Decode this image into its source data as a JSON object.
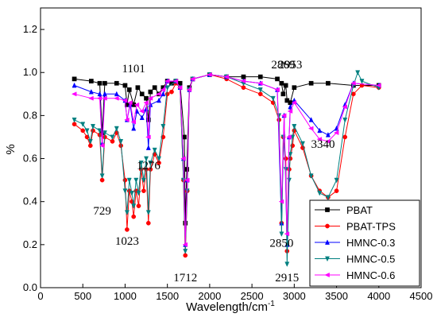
{
  "chart_data": {
    "type": "line",
    "title": "",
    "xlabel": "Wavelength/cm",
    "xlabel_superscript": "-1",
    "ylabel": "%",
    "xlim": [
      0,
      4500
    ],
    "ylim": [
      0.0,
      1.3
    ],
    "x_ticks": [
      0,
      500,
      1000,
      1500,
      2000,
      2500,
      3000,
      3500,
      4000,
      4500
    ],
    "x_tick_labels": [
      "0",
      "500",
      "1000",
      "1500",
      "2000",
      "2500",
      "3000",
      "3500",
      "4000",
      "4500"
    ],
    "y_ticks": [
      0.0,
      0.2,
      0.4,
      0.6,
      0.8,
      1.0,
      1.2
    ],
    "y_tick_labels": [
      "0.0",
      "0.2",
      "0.4",
      "0.6",
      "0.8",
      "1.0",
      "1.2"
    ],
    "grid": false,
    "legend_position": "bottom-right",
    "series": [
      {
        "name": "PBAT",
        "color": "#000000",
        "marker": "square",
        "points": [
          [
            400,
            0.97
          ],
          [
            600,
            0.96
          ],
          [
            700,
            0.95
          ],
          [
            729,
            0.72
          ],
          [
            760,
            0.95
          ],
          [
            900,
            0.95
          ],
          [
            1000,
            0.94
          ],
          [
            1023,
            0.85
          ],
          [
            1050,
            0.92
          ],
          [
            1101,
            0.85
          ],
          [
            1150,
            0.93
          ],
          [
            1200,
            0.9
          ],
          [
            1250,
            0.88
          ],
          [
            1276,
            0.78
          ],
          [
            1300,
            0.91
          ],
          [
            1350,
            0.93
          ],
          [
            1400,
            0.9
          ],
          [
            1450,
            0.93
          ],
          [
            1500,
            0.96
          ],
          [
            1550,
            0.95
          ],
          [
            1600,
            0.96
          ],
          [
            1650,
            0.95
          ],
          [
            1700,
            0.7
          ],
          [
            1712,
            0.3
          ],
          [
            1730,
            0.55
          ],
          [
            1760,
            0.93
          ],
          [
            1800,
            0.97
          ],
          [
            2000,
            0.99
          ],
          [
            2200,
            0.98
          ],
          [
            2400,
            0.98
          ],
          [
            2600,
            0.98
          ],
          [
            2800,
            0.97
          ],
          [
            2850,
            0.95
          ],
          [
            2869,
            0.9
          ],
          [
            2900,
            0.94
          ],
          [
            2915,
            0.87
          ],
          [
            2953,
            0.86
          ],
          [
            3000,
            0.93
          ],
          [
            3200,
            0.95
          ],
          [
            3400,
            0.95
          ],
          [
            3700,
            0.94
          ],
          [
            4000,
            0.94
          ]
        ]
      },
      {
        "name": "PBAT-TPS",
        "color": "#ff0000",
        "marker": "circle",
        "points": [
          [
            400,
            0.76
          ],
          [
            500,
            0.73
          ],
          [
            550,
            0.7
          ],
          [
            590,
            0.66
          ],
          [
            620,
            0.73
          ],
          [
            700,
            0.71
          ],
          [
            729,
            0.5
          ],
          [
            760,
            0.7
          ],
          [
            850,
            0.68
          ],
          [
            900,
            0.72
          ],
          [
            950,
            0.66
          ],
          [
            1000,
            0.5
          ],
          [
            1023,
            0.27
          ],
          [
            1050,
            0.45
          ],
          [
            1080,
            0.4
          ],
          [
            1101,
            0.33
          ],
          [
            1130,
            0.45
          ],
          [
            1160,
            0.38
          ],
          [
            1190,
            0.55
          ],
          [
            1220,
            0.45
          ],
          [
            1250,
            0.55
          ],
          [
            1276,
            0.3
          ],
          [
            1300,
            0.55
          ],
          [
            1350,
            0.62
          ],
          [
            1400,
            0.58
          ],
          [
            1450,
            0.7
          ],
          [
            1500,
            0.9
          ],
          [
            1550,
            0.91
          ],
          [
            1600,
            0.95
          ],
          [
            1650,
            0.93
          ],
          [
            1690,
            0.5
          ],
          [
            1712,
            0.15
          ],
          [
            1735,
            0.45
          ],
          [
            1760,
            0.92
          ],
          [
            1800,
            0.97
          ],
          [
            2000,
            0.99
          ],
          [
            2200,
            0.97
          ],
          [
            2400,
            0.93
          ],
          [
            2600,
            0.9
          ],
          [
            2750,
            0.86
          ],
          [
            2820,
            0.78
          ],
          [
            2850,
            0.3
          ],
          [
            2870,
            0.7
          ],
          [
            2900,
            0.6
          ],
          [
            2915,
            0.17
          ],
          [
            2940,
            0.55
          ],
          [
            2953,
            0.6
          ],
          [
            2980,
            0.66
          ],
          [
            3000,
            0.73
          ],
          [
            3100,
            0.65
          ],
          [
            3200,
            0.52
          ],
          [
            3300,
            0.45
          ],
          [
            3400,
            0.42
          ],
          [
            3500,
            0.45
          ],
          [
            3600,
            0.7
          ],
          [
            3700,
            0.9
          ],
          [
            3800,
            0.94
          ],
          [
            4000,
            0.93
          ]
        ]
      },
      {
        "name": "HMNC-0.3",
        "color": "#0000ff",
        "marker": "triangle",
        "points": [
          [
            400,
            0.94
          ],
          [
            600,
            0.91
          ],
          [
            700,
            0.9
          ],
          [
            729,
            0.67
          ],
          [
            760,
            0.9
          ],
          [
            900,
            0.9
          ],
          [
            1000,
            0.87
          ],
          [
            1023,
            0.78
          ],
          [
            1060,
            0.85
          ],
          [
            1101,
            0.74
          ],
          [
            1140,
            0.82
          ],
          [
            1200,
            0.79
          ],
          [
            1250,
            0.83
          ],
          [
            1276,
            0.65
          ],
          [
            1300,
            0.85
          ],
          [
            1400,
            0.87
          ],
          [
            1450,
            0.9
          ],
          [
            1500,
            0.96
          ],
          [
            1600,
            0.96
          ],
          [
            1650,
            0.93
          ],
          [
            1690,
            0.6
          ],
          [
            1712,
            0.2
          ],
          [
            1735,
            0.5
          ],
          [
            1760,
            0.92
          ],
          [
            1800,
            0.97
          ],
          [
            2000,
            0.99
          ],
          [
            2200,
            0.98
          ],
          [
            2400,
            0.96
          ],
          [
            2600,
            0.95
          ],
          [
            2800,
            0.92
          ],
          [
            2850,
            0.3
          ],
          [
            2880,
            0.8
          ],
          [
            2915,
            0.2
          ],
          [
            2940,
            0.7
          ],
          [
            2953,
            0.84
          ],
          [
            3000,
            0.87
          ],
          [
            3200,
            0.78
          ],
          [
            3300,
            0.73
          ],
          [
            3400,
            0.71
          ],
          [
            3500,
            0.74
          ],
          [
            3600,
            0.85
          ],
          [
            3700,
            0.95
          ],
          [
            4000,
            0.94
          ]
        ]
      },
      {
        "name": "HMNC-0.5",
        "color": "#008080",
        "marker": "triangle-down",
        "points": [
          [
            400,
            0.78
          ],
          [
            500,
            0.76
          ],
          [
            550,
            0.73
          ],
          [
            590,
            0.68
          ],
          [
            620,
            0.75
          ],
          [
            700,
            0.73
          ],
          [
            729,
            0.52
          ],
          [
            760,
            0.72
          ],
          [
            850,
            0.7
          ],
          [
            900,
            0.74
          ],
          [
            950,
            0.68
          ],
          [
            1000,
            0.45
          ],
          [
            1023,
            0.35
          ],
          [
            1050,
            0.5
          ],
          [
            1080,
            0.44
          ],
          [
            1101,
            0.38
          ],
          [
            1130,
            0.5
          ],
          [
            1160,
            0.44
          ],
          [
            1190,
            0.58
          ],
          [
            1220,
            0.5
          ],
          [
            1250,
            0.6
          ],
          [
            1276,
            0.35
          ],
          [
            1300,
            0.58
          ],
          [
            1350,
            0.64
          ],
          [
            1400,
            0.6
          ],
          [
            1450,
            0.75
          ],
          [
            1500,
            0.93
          ],
          [
            1600,
            0.96
          ],
          [
            1650,
            0.93
          ],
          [
            1690,
            0.5
          ],
          [
            1712,
            0.17
          ],
          [
            1735,
            0.45
          ],
          [
            1760,
            0.92
          ],
          [
            1800,
            0.97
          ],
          [
            2000,
            0.99
          ],
          [
            2200,
            0.98
          ],
          [
            2400,
            0.95
          ],
          [
            2600,
            0.92
          ],
          [
            2750,
            0.88
          ],
          [
            2820,
            0.8
          ],
          [
            2850,
            0.25
          ],
          [
            2870,
            0.7
          ],
          [
            2900,
            0.55
          ],
          [
            2915,
            0.11
          ],
          [
            2940,
            0.5
          ],
          [
            2953,
            0.62
          ],
          [
            2980,
            0.7
          ],
          [
            3000,
            0.75
          ],
          [
            3100,
            0.67
          ],
          [
            3200,
            0.52
          ],
          [
            3300,
            0.44
          ],
          [
            3400,
            0.42
          ],
          [
            3500,
            0.5
          ],
          [
            3600,
            0.78
          ],
          [
            3700,
            0.94
          ],
          [
            3750,
            1.0
          ],
          [
            3800,
            0.96
          ],
          [
            4000,
            0.93
          ]
        ]
      },
      {
        "name": "HMNC-0.6",
        "color": "#ff00ff",
        "marker": "triangle-left",
        "points": [
          [
            400,
            0.9
          ],
          [
            600,
            0.88
          ],
          [
            700,
            0.88
          ],
          [
            729,
            0.66
          ],
          [
            760,
            0.88
          ],
          [
            900,
            0.88
          ],
          [
            1000,
            0.87
          ],
          [
            1023,
            0.78
          ],
          [
            1060,
            0.86
          ],
          [
            1101,
            0.77
          ],
          [
            1140,
            0.85
          ],
          [
            1200,
            0.82
          ],
          [
            1250,
            0.86
          ],
          [
            1276,
            0.7
          ],
          [
            1300,
            0.88
          ],
          [
            1400,
            0.9
          ],
          [
            1450,
            0.92
          ],
          [
            1500,
            0.96
          ],
          [
            1600,
            0.96
          ],
          [
            1650,
            0.93
          ],
          [
            1690,
            0.6
          ],
          [
            1712,
            0.2
          ],
          [
            1735,
            0.5
          ],
          [
            1760,
            0.92
          ],
          [
            1800,
            0.97
          ],
          [
            2000,
            0.99
          ],
          [
            2200,
            0.98
          ],
          [
            2400,
            0.96
          ],
          [
            2600,
            0.95
          ],
          [
            2800,
            0.92
          ],
          [
            2850,
            0.4
          ],
          [
            2880,
            0.8
          ],
          [
            2915,
            0.25
          ],
          [
            2940,
            0.7
          ],
          [
            2953,
            0.82
          ],
          [
            3000,
            0.86
          ],
          [
            3200,
            0.74
          ],
          [
            3300,
            0.69
          ],
          [
            3400,
            0.68
          ],
          [
            3500,
            0.72
          ],
          [
            3600,
            0.84
          ],
          [
            3700,
            0.95
          ],
          [
            4000,
            0.94
          ]
        ]
      }
    ],
    "annotations": [
      {
        "text": "729",
        "x": 729,
        "y": 0.34
      },
      {
        "text": "1101",
        "x": 1101,
        "y": 1.0
      },
      {
        "text": "1023",
        "x": 1023,
        "y": 0.2
      },
      {
        "text": "1276",
        "x": 1276,
        "y": 0.55
      },
      {
        "text": "1712",
        "x": 1712,
        "y": 0.03
      },
      {
        "text": "2869",
        "x": 2869,
        "y": 1.02
      },
      {
        "text": "2953",
        "x": 2953,
        "y": 1.02
      },
      {
        "text": "3340",
        "x": 3340,
        "y": 0.65
      },
      {
        "text": "2850",
        "x": 2850,
        "y": 0.19
      },
      {
        "text": "2915",
        "x": 2915,
        "y": 0.03
      }
    ]
  }
}
